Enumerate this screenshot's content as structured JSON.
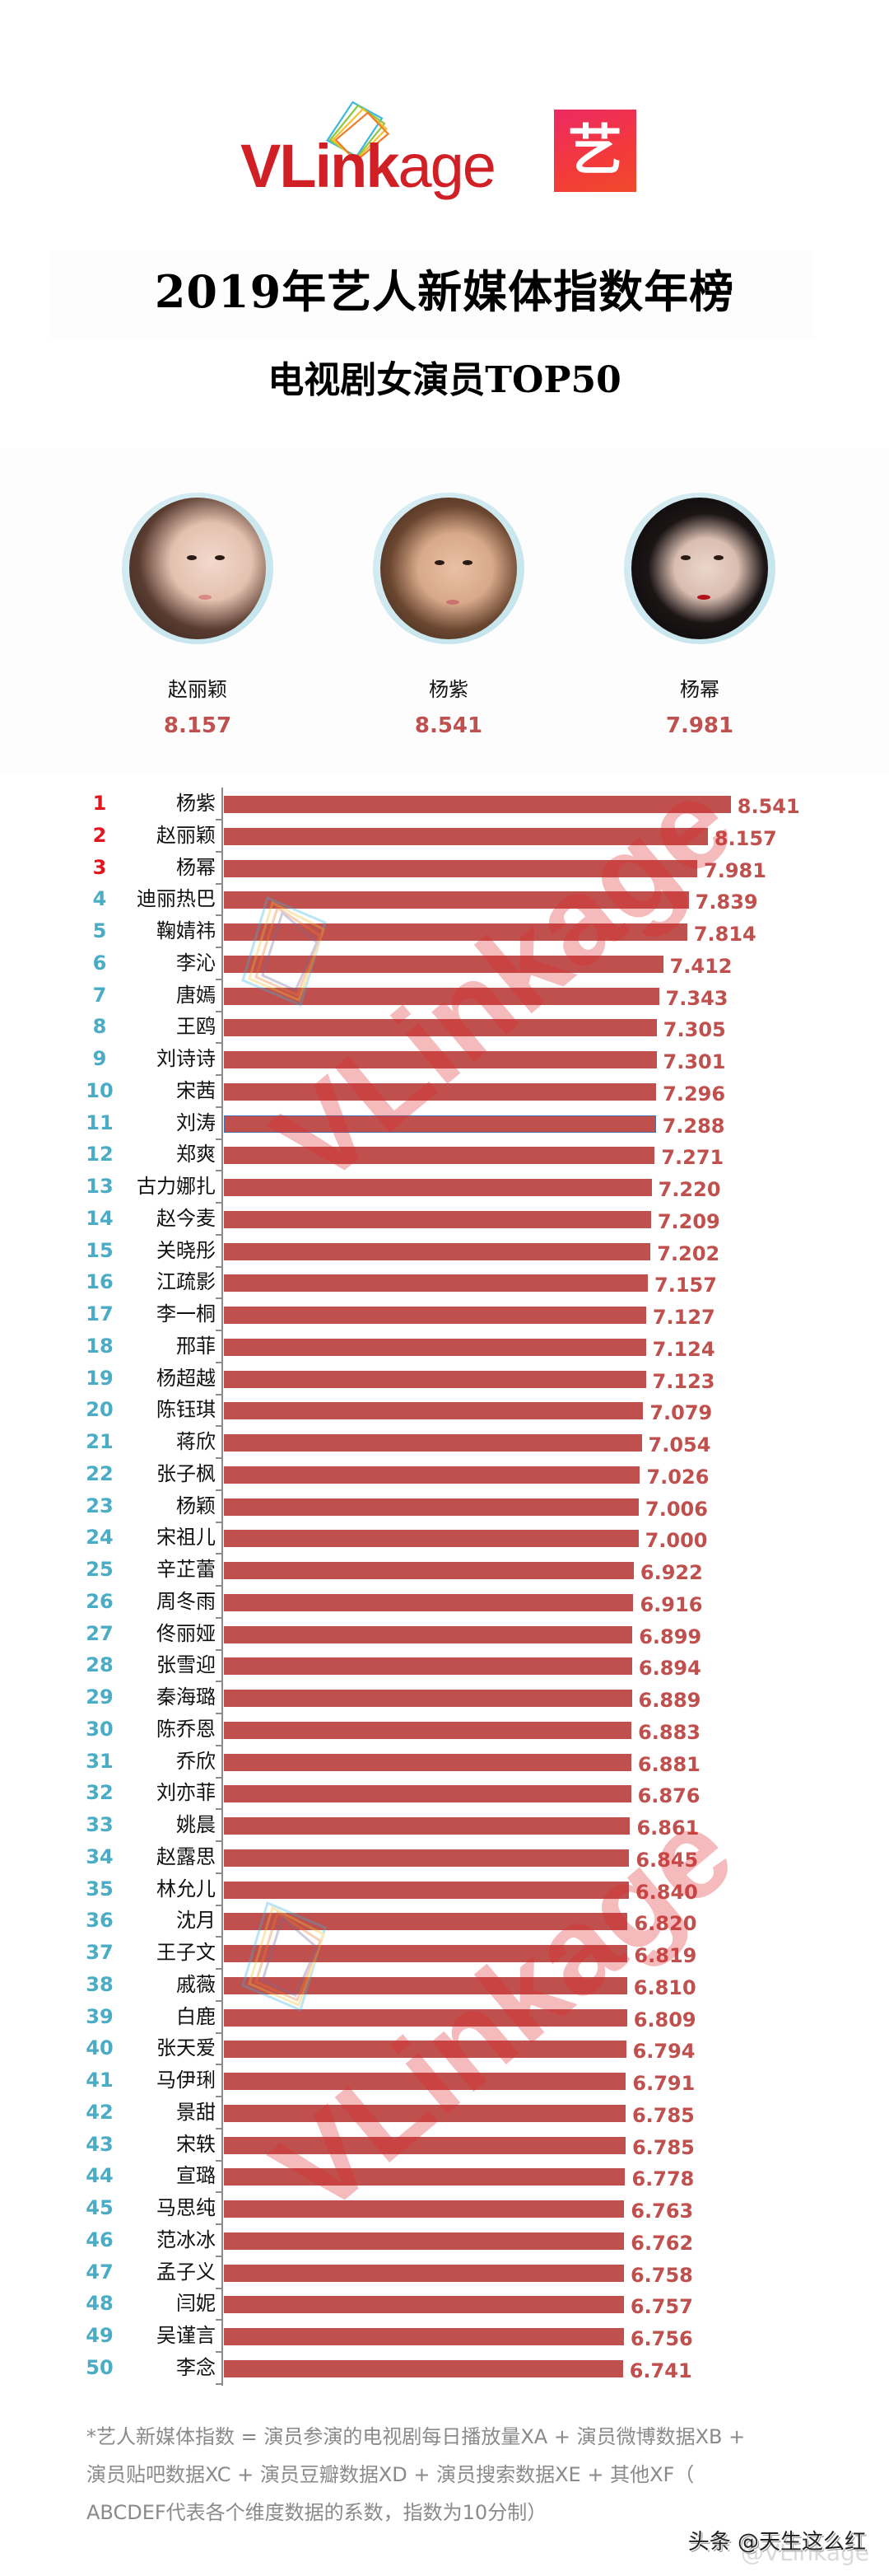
{
  "header": {
    "brand_logo_text": "VLinkage",
    "brand_logo_bold": "VLink",
    "brand_logo_light": "age",
    "app_icon_glyph": "艺",
    "title": "2019年艺人新媒体指数年榜",
    "subtitle": "电视剧女演员TOP50"
  },
  "podium": [
    {
      "position": "left",
      "rank": 2,
      "name": "赵丽颖",
      "score": "8.157"
    },
    {
      "position": "center",
      "rank": 1,
      "name": "杨紫",
      "score": "8.541"
    },
    {
      "position": "right",
      "rank": 3,
      "name": "杨幂",
      "score": "7.981"
    }
  ],
  "colors": {
    "bar": "#c0504d",
    "value_text": "#c0504d",
    "rank_top3": "#e3141b",
    "rank_other": "#4bacc6",
    "brand_red": "#d11f26",
    "footnote_gray": "#8a8a8a"
  },
  "chart_data": {
    "type": "bar",
    "orientation": "horizontal",
    "title": "2019年艺人新媒体指数年榜 电视剧女演员TOP50",
    "xlabel": "",
    "ylabel": "",
    "grid": false,
    "legend": null,
    "categories": [
      "杨紫",
      "赵丽颖",
      "杨幂",
      "迪丽热巴",
      "鞠婧祎",
      "李沁",
      "唐嫣",
      "王鸥",
      "刘诗诗",
      "宋茜",
      "刘涛",
      "郑爽",
      "古力娜扎",
      "赵今麦",
      "关晓彤",
      "江疏影",
      "李一桐",
      "邢菲",
      "杨超越",
      "陈钰琪",
      "蒋欣",
      "张子枫",
      "杨颖",
      "宋祖儿",
      "辛芷蕾",
      "周冬雨",
      "佟丽娅",
      "张雪迎",
      "秦海璐",
      "陈乔恩",
      "乔欣",
      "刘亦菲",
      "姚晨",
      "赵露思",
      "林允儿",
      "沈月",
      "王子文",
      "戚薇",
      "白鹿",
      "张天爱",
      "马伊琍",
      "景甜",
      "宋轶",
      "宣璐",
      "马思纯",
      "范冰冰",
      "孟子义",
      "闫妮",
      "吴谨言",
      "李念"
    ],
    "values": [
      8.541,
      8.157,
      7.981,
      7.839,
      7.814,
      7.412,
      7.343,
      7.305,
      7.301,
      7.296,
      7.288,
      7.271,
      7.22,
      7.209,
      7.202,
      7.157,
      7.127,
      7.124,
      7.123,
      7.079,
      7.054,
      7.026,
      7.006,
      7.0,
      6.922,
      6.916,
      6.899,
      6.894,
      6.889,
      6.883,
      6.881,
      6.876,
      6.861,
      6.845,
      6.84,
      6.82,
      6.819,
      6.81,
      6.809,
      6.794,
      6.791,
      6.785,
      6.785,
      6.778,
      6.763,
      6.762,
      6.758,
      6.757,
      6.756,
      6.741
    ],
    "value_labels": [
      "8.541",
      "8.157",
      "7.981",
      "7.839",
      "7.814",
      "7.412",
      "7.343",
      "7.305",
      "7.301",
      "7.296",
      "7.288",
      "7.271",
      "7.220",
      "7.209",
      "7.202",
      "7.157",
      "7.127",
      "7.124",
      "7.123",
      "7.079",
      "7.054",
      "7.026",
      "7.006",
      "7.000",
      "6.922",
      "6.916",
      "6.899",
      "6.894",
      "6.889",
      "6.883",
      "6.881",
      "6.876",
      "6.861",
      "6.845",
      "6.840",
      "6.820",
      "6.819",
      "6.810",
      "6.809",
      "6.794",
      "6.791",
      "6.785",
      "6.785",
      "6.778",
      "6.763",
      "6.762",
      "6.758",
      "6.757",
      "6.756",
      "6.741"
    ],
    "ranks": [
      1,
      2,
      3,
      4,
      5,
      6,
      7,
      8,
      9,
      10,
      11,
      12,
      13,
      14,
      15,
      16,
      17,
      18,
      19,
      20,
      21,
      22,
      23,
      24,
      25,
      26,
      27,
      28,
      29,
      30,
      31,
      32,
      33,
      34,
      35,
      36,
      37,
      38,
      39,
      40,
      41,
      42,
      43,
      44,
      45,
      46,
      47,
      48,
      49,
      50
    ],
    "xlim": [
      0,
      9
    ]
  },
  "watermarks": {
    "chart_watermark_text": "VLinkage",
    "credit_ghost": "@VLinkage"
  },
  "footer": {
    "note_lines": [
      "*艺人新媒体指数 = 演员参演的电视剧每日播放量XA + 演员微博数据XB +",
      "演员贴吧数据XC + 演员豆瓣数据XD + 演员搜索数据XE + 其他XF（",
      "ABCDEF代表各个维度数据的系数，指数为10分制）"
    ],
    "credit": "头条 @天生这么红"
  }
}
